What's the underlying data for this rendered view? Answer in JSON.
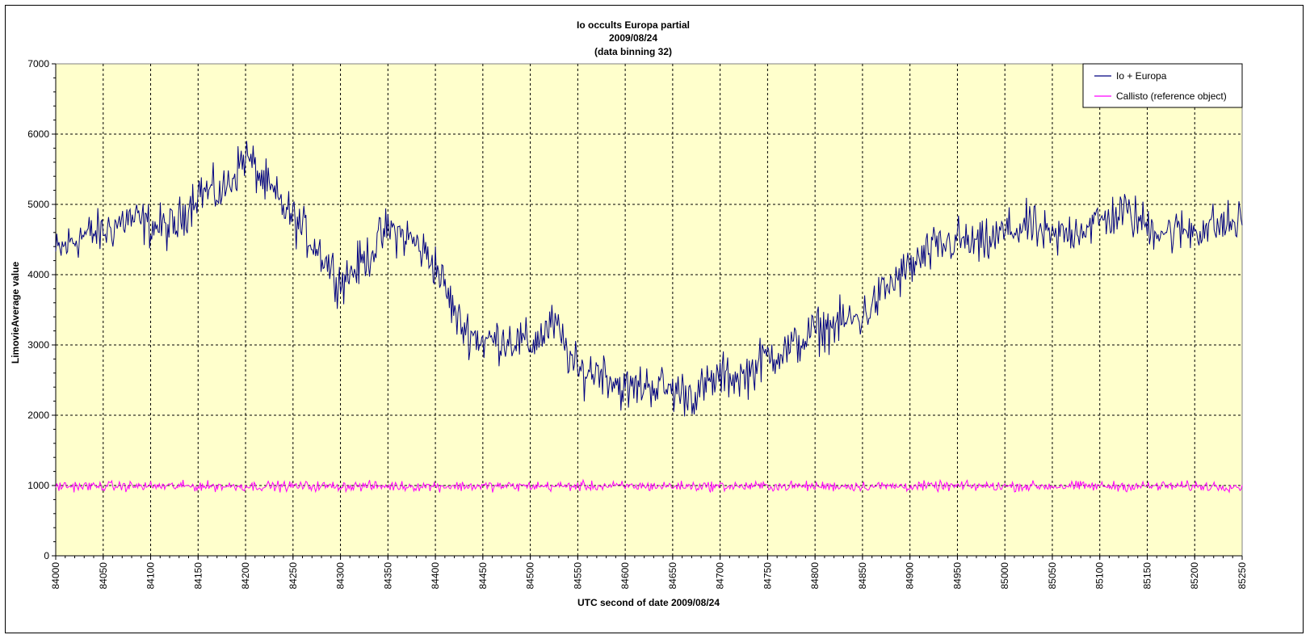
{
  "chart_data": {
    "type": "line",
    "title": [
      "Io occults Europa partial",
      "2009/08/24",
      "(data binning 32)"
    ],
    "xlabel": "UTC second  of date 2009/08/24",
    "ylabel": "LimovieAverage value",
    "xlim": [
      84000,
      85250
    ],
    "ylim": [
      0,
      7000
    ],
    "x_ticks": [
      84000,
      84050,
      84100,
      84150,
      84200,
      84250,
      84300,
      84350,
      84400,
      84450,
      84500,
      84550,
      84600,
      84650,
      84700,
      84750,
      84800,
      84850,
      84900,
      84950,
      85000,
      85050,
      85100,
      85150,
      85200,
      85250
    ],
    "y_ticks": [
      0,
      1000,
      2000,
      3000,
      4000,
      5000,
      6000,
      7000
    ],
    "grid": true,
    "legend_position": "top-right",
    "plot_background": "#ffffcc",
    "series": [
      {
        "name": "Io + Europa",
        "color": "#000080",
        "x": [
          84000,
          84025,
          84050,
          84075,
          84100,
          84125,
          84150,
          84175,
          84200,
          84225,
          84250,
          84275,
          84300,
          84325,
          84350,
          84375,
          84400,
          84425,
          84450,
          84475,
          84500,
          84525,
          84550,
          84575,
          84600,
          84625,
          84650,
          84675,
          84700,
          84725,
          84750,
          84775,
          84800,
          84825,
          84850,
          84875,
          84900,
          84925,
          84950,
          84975,
          85000,
          85025,
          85050,
          85075,
          85100,
          85125,
          85150,
          85175,
          85200,
          85225,
          85250
        ],
        "values": [
          4300,
          4550,
          4600,
          4800,
          4700,
          4650,
          5200,
          5150,
          5700,
          5200,
          4800,
          4400,
          3900,
          4200,
          4650,
          4500,
          4150,
          3300,
          3050,
          3100,
          3000,
          3300,
          2600,
          2650,
          2350,
          2450,
          2350,
          2300,
          2550,
          2550,
          2850,
          2950,
          3200,
          3300,
          3400,
          3800,
          4100,
          4350,
          4500,
          4400,
          4600,
          4700,
          4500,
          4650,
          4750,
          4900,
          4700,
          4600,
          4650,
          4700,
          4750
        ]
      },
      {
        "name": "Callisto (reference object)",
        "color": "#ff00ff",
        "x": [
          84000,
          85250
        ],
        "values": [
          990,
          990
        ]
      }
    ]
  }
}
